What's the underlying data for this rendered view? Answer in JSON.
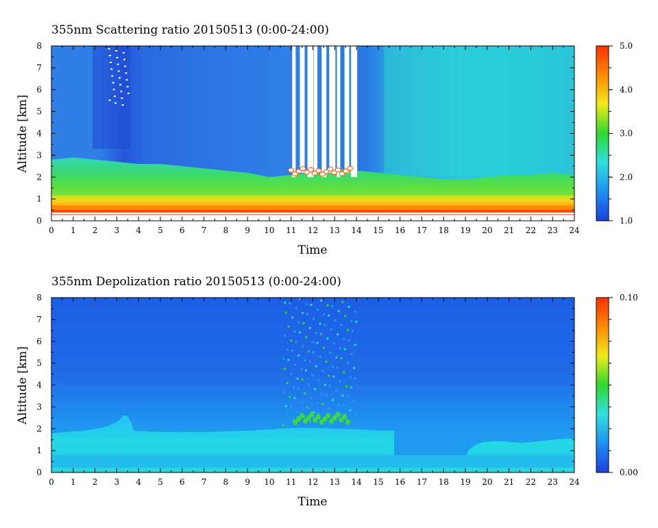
{
  "chart_data": [
    {
      "type": "heatmap",
      "title": "355nm Scattering ratio  20150513 (0:00-24:00)",
      "xlabel": "Time",
      "ylabel": "Altitude [km]",
      "xlim": [
        0,
        24
      ],
      "ylim": [
        0,
        8
      ],
      "x_ticks": [
        "0",
        "1",
        "2",
        "3",
        "4",
        "5",
        "6",
        "7",
        "8",
        "9",
        "10",
        "11",
        "12",
        "13",
        "14",
        "15",
        "16",
        "17",
        "18",
        "19",
        "20",
        "21",
        "22",
        "23",
        "24"
      ],
      "y_ticks": [
        "0",
        "1",
        "2",
        "3",
        "4",
        "5",
        "6",
        "7",
        "8"
      ],
      "colorbar": {
        "range": [
          1.0,
          5.0
        ],
        "tick_labels": [
          "1.0",
          "2.0",
          "3.0",
          "4.0",
          "5.0"
        ],
        "colors": [
          "#1a40e0",
          "#1e90f0",
          "#2ee0e0",
          "#2ed82e",
          "#f2ea1a",
          "#ff8a00",
          "#ff3000"
        ]
      },
      "features": {
        "boundary_layer_top_km": [
          2.8,
          2.9,
          2.8,
          2.7,
          2.6,
          2.6,
          2.5,
          2.4,
          2.3,
          2.2,
          2.0,
          2.1,
          2.2,
          2.4,
          2.3,
          2.2,
          2.1,
          2.0,
          1.9,
          1.9,
          2.0,
          2.1,
          2.1,
          2.2,
          2.1
        ],
        "cloud_band_hours": [
          11.0,
          13.8
        ],
        "cloud_base_km": 2.0
      }
    },
    {
      "type": "heatmap",
      "title": "355nm Depolization ratio  20150513 (0:00-24:00)",
      "xlabel": "Time",
      "ylabel": "Altitude [km]",
      "xlim": [
        0,
        24
      ],
      "ylim": [
        0,
        8
      ],
      "x_ticks": [
        "0",
        "1",
        "2",
        "3",
        "4",
        "5",
        "6",
        "7",
        "8",
        "9",
        "10",
        "11",
        "12",
        "13",
        "14",
        "15",
        "16",
        "17",
        "18",
        "19",
        "20",
        "21",
        "22",
        "23",
        "24"
      ],
      "y_ticks": [
        "0",
        "1",
        "2",
        "3",
        "4",
        "5",
        "6",
        "7",
        "8"
      ],
      "colorbar": {
        "range": [
          0.0,
          0.1
        ],
        "tick_labels": [
          "0.00",
          "0.10"
        ],
        "colors": [
          "#1a40e0",
          "#1e90f0",
          "#2ee0e0",
          "#2ed82e",
          "#f2ea1a",
          "#ff8a00",
          "#ff3000"
        ]
      },
      "features": {
        "aerosol_layer_top_km": 1.8,
        "cloud_band_hours": [
          11.0,
          13.8
        ]
      }
    }
  ]
}
